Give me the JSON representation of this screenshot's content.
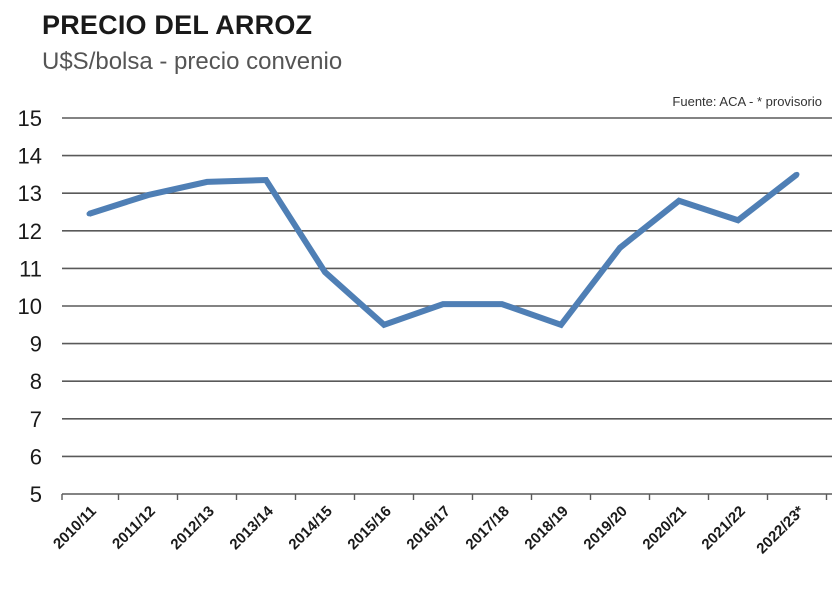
{
  "chart_data": {
    "type": "line",
    "title": "PRECIO DEL ARROZ",
    "subtitle": "U$S/bolsa  - precio convenio",
    "source": "Fuente: ACA - * provisorio",
    "categories": [
      "2010/11",
      "2011/12",
      "2012/13",
      "2013/14",
      "2014/15",
      "2015/16",
      "2016/17",
      "2017/18",
      "2018/19",
      "2019/20",
      "2020/21",
      "2021/22",
      "2022/23*"
    ],
    "series": [
      {
        "values": [
          12.45,
          12.95,
          13.3,
          13.35,
          10.9,
          9.5,
          10.05,
          10.05,
          9.5,
          11.55,
          12.8,
          12.28,
          13.5
        ],
        "color": "#4f7fb5"
      }
    ],
    "ylim": [
      5,
      15
    ],
    "yticks": [
      5,
      6,
      7,
      8,
      9,
      10,
      11,
      12,
      13,
      14,
      15
    ],
    "grid": true,
    "legend": "none"
  }
}
